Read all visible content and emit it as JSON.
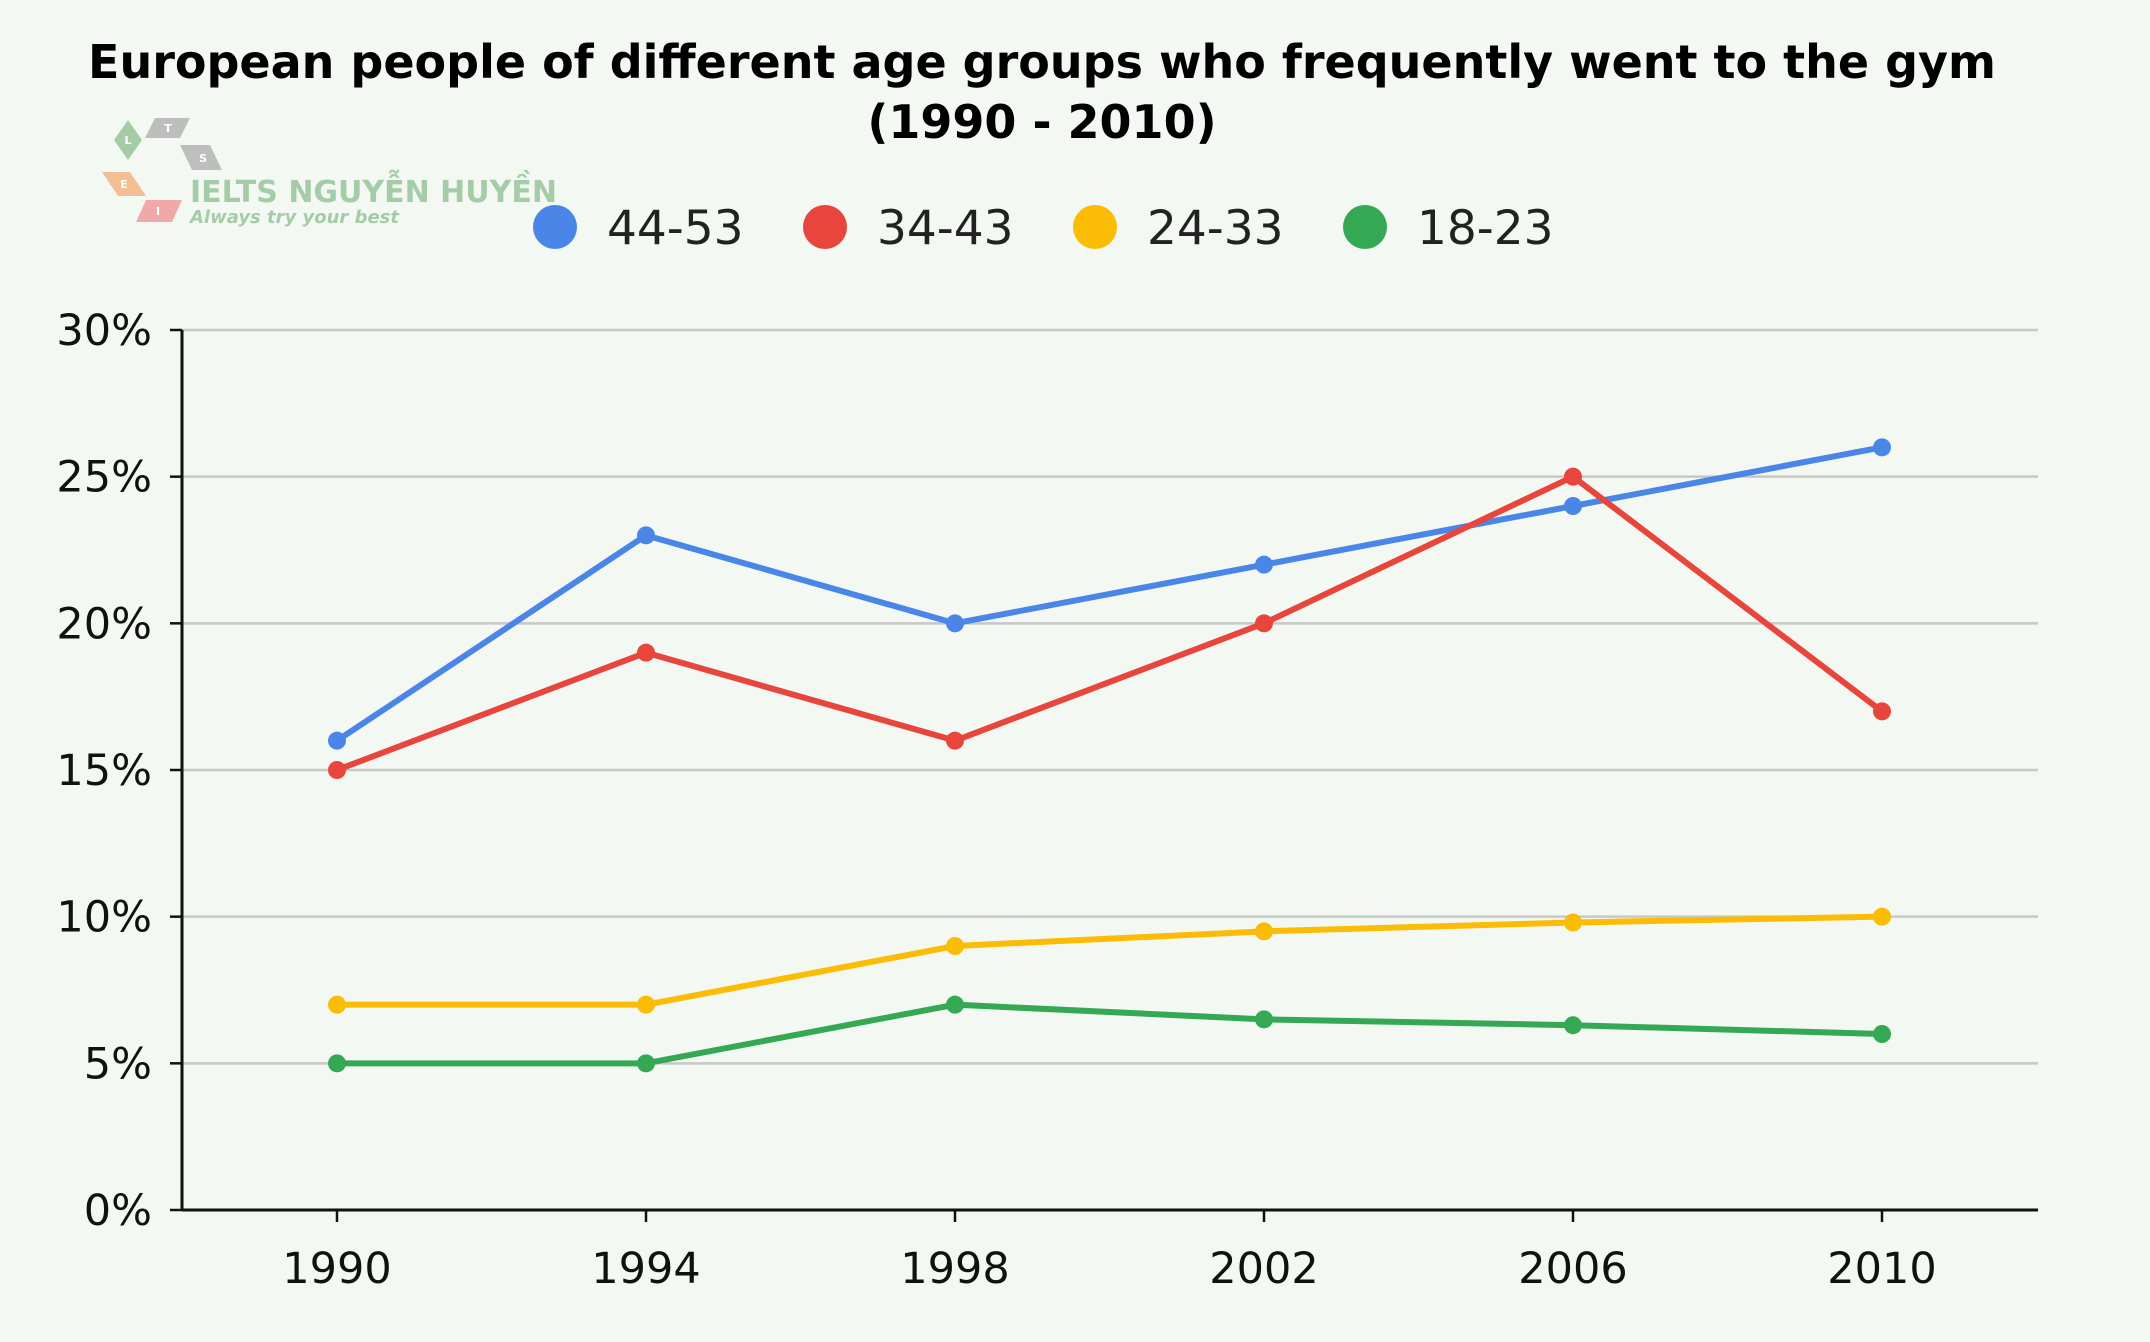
{
  "chart_data": {
    "type": "line",
    "title_line1": "European people of different age groups who frequently went to the gym",
    "title_line2": "(1990 - 2010)",
    "categories": [
      "1990",
      "1994",
      "1998",
      "2002",
      "2006",
      "2010"
    ],
    "y_tick_labels": [
      "0%",
      "5%",
      "10%",
      "15%",
      "20%",
      "25%",
      "30%"
    ],
    "ylim": [
      0,
      30
    ],
    "y_step": 5,
    "legend_position": "top-center",
    "grid": true,
    "series": [
      {
        "name": "44-53",
        "color": "#4a86e8",
        "values": [
          16,
          23,
          20,
          22,
          24,
          26
        ]
      },
      {
        "name": "34-43",
        "color": "#e8453c",
        "values": [
          15,
          19,
          16,
          20,
          25,
          17
        ]
      },
      {
        "name": "24-33",
        "color": "#fbbc05",
        "values": [
          7,
          7,
          9,
          9.5,
          9.8,
          10
        ]
      },
      {
        "name": "18-23",
        "color": "#34a853",
        "values": [
          5,
          5,
          7,
          6.5,
          6.3,
          6
        ]
      }
    ]
  },
  "watermark": {
    "name": "IELTS NGUYỄN HUYỀN",
    "tagline": "Always try your best",
    "logo_letters": [
      "L",
      "T",
      "S",
      "E",
      "I"
    ]
  },
  "colors": {
    "grid": "#c8c8c8",
    "axis": "#111111",
    "logo_green": "#9cc89f",
    "logo_gray": "#b8b8b8",
    "logo_orange": "#f4b88a",
    "logo_red": "#f0a0a0"
  }
}
